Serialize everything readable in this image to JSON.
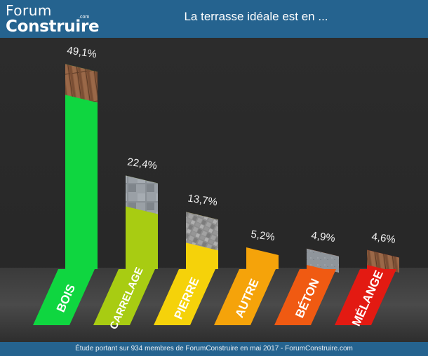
{
  "header": {
    "logo_line1": "Forum",
    "logo_line2": "Construire",
    "logo_dotcom": ".com",
    "title": "La terrasse idéale est en ..."
  },
  "footer": {
    "text": "Étude portant sur 934 membres de ForumConstruire en mai 2017 - ForumConstruire.com"
  },
  "chart_data": {
    "type": "bar",
    "title": "La terrasse idéale est en ...",
    "categories": [
      "BOIS",
      "CARRELAGE",
      "PIERRE",
      "AUTRE",
      "BÉTON",
      "MÉLANGE"
    ],
    "values": [
      49.1,
      22.4,
      13.7,
      5.2,
      4.9,
      4.6
    ],
    "value_labels": [
      "49,1%",
      "22,4%",
      "13,7%",
      "5,2%",
      "4,9%",
      "4,6%"
    ],
    "colors": [
      "#0fd640",
      "#a8cc12",
      "#f5d20a",
      "#f5a30a",
      "#f05a12",
      "#e31a12"
    ],
    "textures": [
      "wood",
      "tile",
      "stone",
      "none",
      "concrete",
      "wood"
    ],
    "ylim": [
      0,
      50
    ],
    "grid": false,
    "legend": "none"
  }
}
